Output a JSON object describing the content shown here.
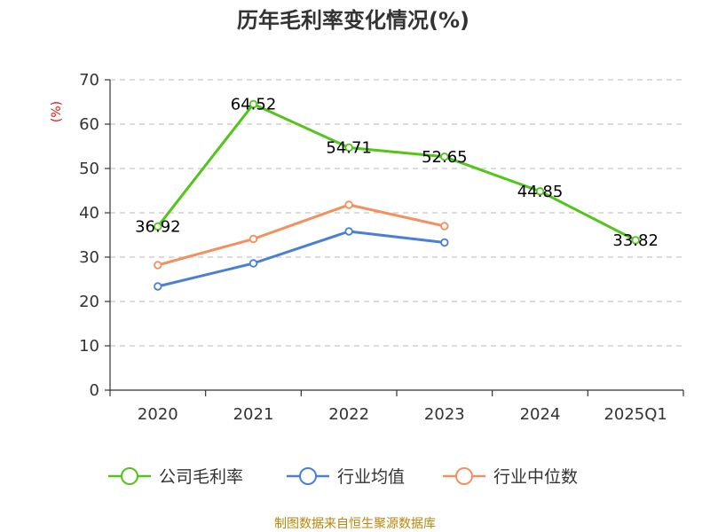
{
  "chart_data": {
    "type": "line",
    "title": "历年毛利率变化情况(%)",
    "ylabel": "(%)",
    "xlabel": "",
    "categories": [
      "2020",
      "2021",
      "2022",
      "2023",
      "2024",
      "2025Q1"
    ],
    "ylim": [
      0,
      70
    ],
    "yticks": [
      0,
      10,
      20,
      30,
      40,
      50,
      60,
      70
    ],
    "grid": "horizontal-dashed",
    "legend_position": "bottom",
    "series": [
      {
        "name": "公司毛利率",
        "color": "#52c41a",
        "values": [
          36.92,
          64.52,
          54.71,
          52.65,
          44.85,
          33.82
        ],
        "labels": [
          "36.92",
          "64.52",
          "54.71",
          "52.65",
          "44.85",
          "33.82"
        ]
      },
      {
        "name": "行业均值",
        "color": "#4a7fd6",
        "values": [
          23.4,
          28.6,
          35.8,
          33.3,
          null,
          null
        ]
      },
      {
        "name": "行业中位数",
        "color": "#f39060",
        "values": [
          28.2,
          34.1,
          41.8,
          37.0,
          null,
          null
        ]
      }
    ]
  },
  "source": "制图数据来自恒生聚源数据库"
}
